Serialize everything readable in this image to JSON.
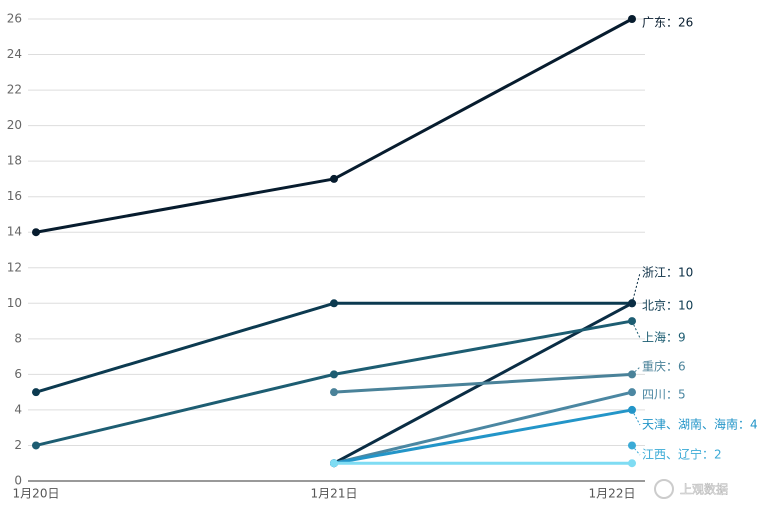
{
  "chart_data": {
    "type": "line",
    "categories": [
      "1月20日",
      "1月21日",
      "1月22日"
    ],
    "ylim": [
      0,
      26
    ],
    "yticks": [
      0,
      2,
      4,
      6,
      8,
      10,
      12,
      14,
      16,
      18,
      20,
      22,
      24,
      26
    ],
    "grid": true,
    "series": [
      {
        "name": "广东",
        "end_label": "广东：26",
        "color": "#071c2e",
        "values": [
          14,
          17,
          26
        ]
      },
      {
        "name": "北京",
        "end_label": "北京：10",
        "color": "#0c3a50",
        "values": [
          5,
          10,
          10
        ]
      },
      {
        "name": "浙江",
        "end_label": "浙江：10",
        "color": "#0a2d44",
        "values": [
          null,
          1,
          10
        ]
      },
      {
        "name": "上海",
        "end_label": "上海：9",
        "color": "#1d5d72",
        "values": [
          2,
          6,
          9
        ]
      },
      {
        "name": "重庆",
        "end_label": "重庆：6",
        "color": "#4a8299",
        "values": [
          null,
          5,
          6
        ]
      },
      {
        "name": "四川",
        "end_label": "四川：5",
        "color": "#4b87a2",
        "values": [
          null,
          1,
          5
        ]
      },
      {
        "name": "天津、湖南、海南",
        "end_label": "天津、湖南、海南：4",
        "color": "#2395c8",
        "values": [
          null,
          1,
          4
        ]
      },
      {
        "name": "江西、辽宁",
        "end_label": "江西、辽宁：2",
        "color": "#3aaad6",
        "values": [
          null,
          null,
          2
        ]
      },
      {
        "color": "#7fdcf3",
        "values": [
          null,
          1,
          1
        ]
      }
    ],
    "watermark": "上观数据"
  }
}
